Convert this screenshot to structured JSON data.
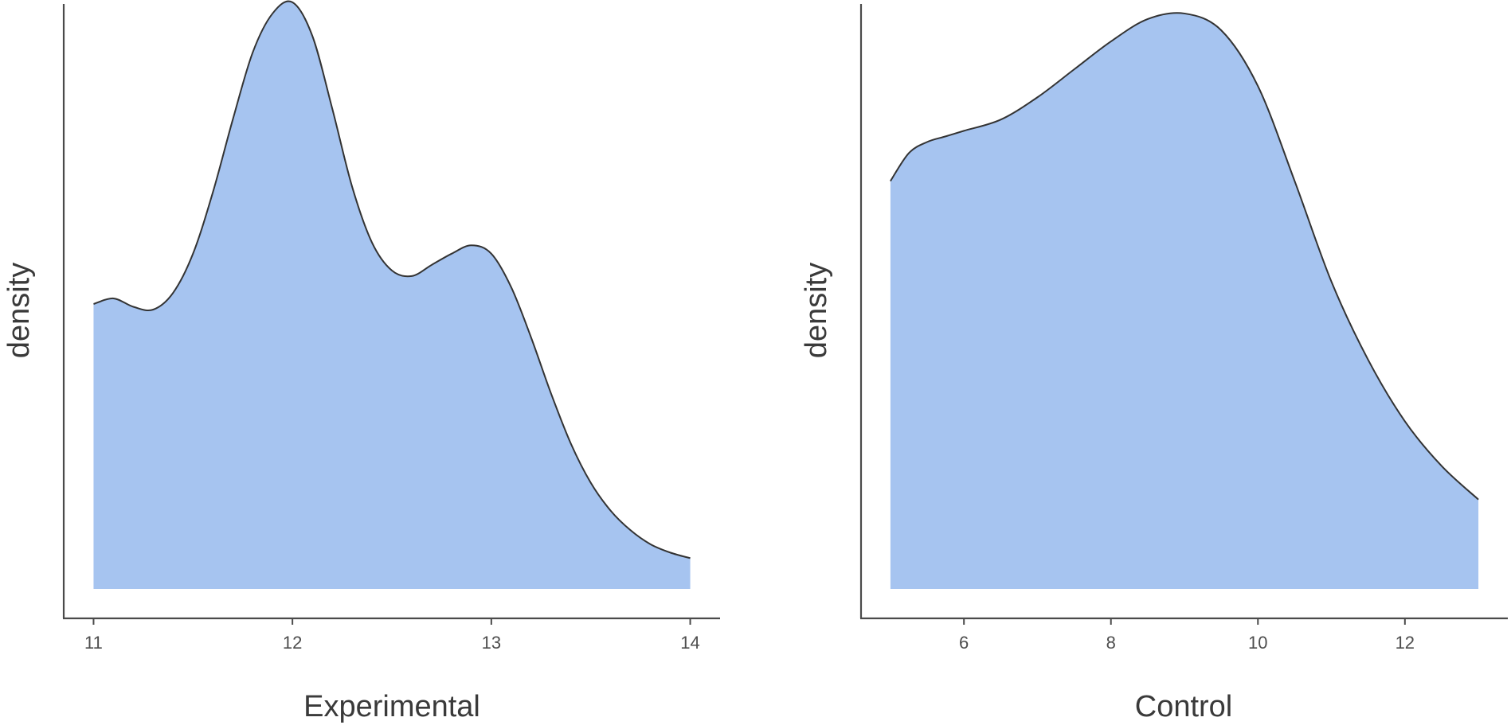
{
  "chart_data": [
    {
      "type": "area",
      "xlabel": "Experimental",
      "ylabel": "density",
      "xlim": [
        10.85,
        14.15
      ],
      "ylim": [
        0,
        1
      ],
      "x_ticks": [
        11,
        12,
        13,
        14
      ],
      "tick_labels": [
        "11",
        "12",
        "13",
        "14"
      ],
      "fill_color": "#a6c4f0",
      "x": [
        11.0,
        11.1,
        11.2,
        11.3,
        11.4,
        11.5,
        11.6,
        11.7,
        11.8,
        11.9,
        12.0,
        12.1,
        12.2,
        12.3,
        12.4,
        12.5,
        12.6,
        12.7,
        12.8,
        12.9,
        13.0,
        13.1,
        13.2,
        13.3,
        13.4,
        13.5,
        13.6,
        13.7,
        13.8,
        13.9,
        14.0
      ],
      "y": [
        0.51,
        0.52,
        0.505,
        0.5,
        0.53,
        0.6,
        0.71,
        0.84,
        0.96,
        1.03,
        1.05,
        0.99,
        0.86,
        0.72,
        0.62,
        0.57,
        0.56,
        0.58,
        0.6,
        0.615,
        0.6,
        0.54,
        0.45,
        0.35,
        0.26,
        0.19,
        0.14,
        0.105,
        0.08,
        0.065,
        0.055
      ]
    },
    {
      "type": "area",
      "xlabel": "Control",
      "ylabel": "density",
      "xlim": [
        4.6,
        13.4
      ],
      "ylim": [
        0,
        1
      ],
      "x_ticks": [
        6,
        8,
        10,
        12
      ],
      "tick_labels": [
        "6",
        "8",
        "10",
        "12"
      ],
      "fill_color": "#a6c4f0",
      "x": [
        5.0,
        5.25,
        5.5,
        5.75,
        6.0,
        6.5,
        7.0,
        7.5,
        8.0,
        8.5,
        9.0,
        9.5,
        10.0,
        10.5,
        11.0,
        11.5,
        12.0,
        12.5,
        13.0
      ],
      "y": [
        0.73,
        0.78,
        0.8,
        0.81,
        0.82,
        0.84,
        0.88,
        0.93,
        0.98,
        1.02,
        1.03,
        1.0,
        0.9,
        0.73,
        0.55,
        0.41,
        0.3,
        0.22,
        0.16
      ]
    }
  ]
}
